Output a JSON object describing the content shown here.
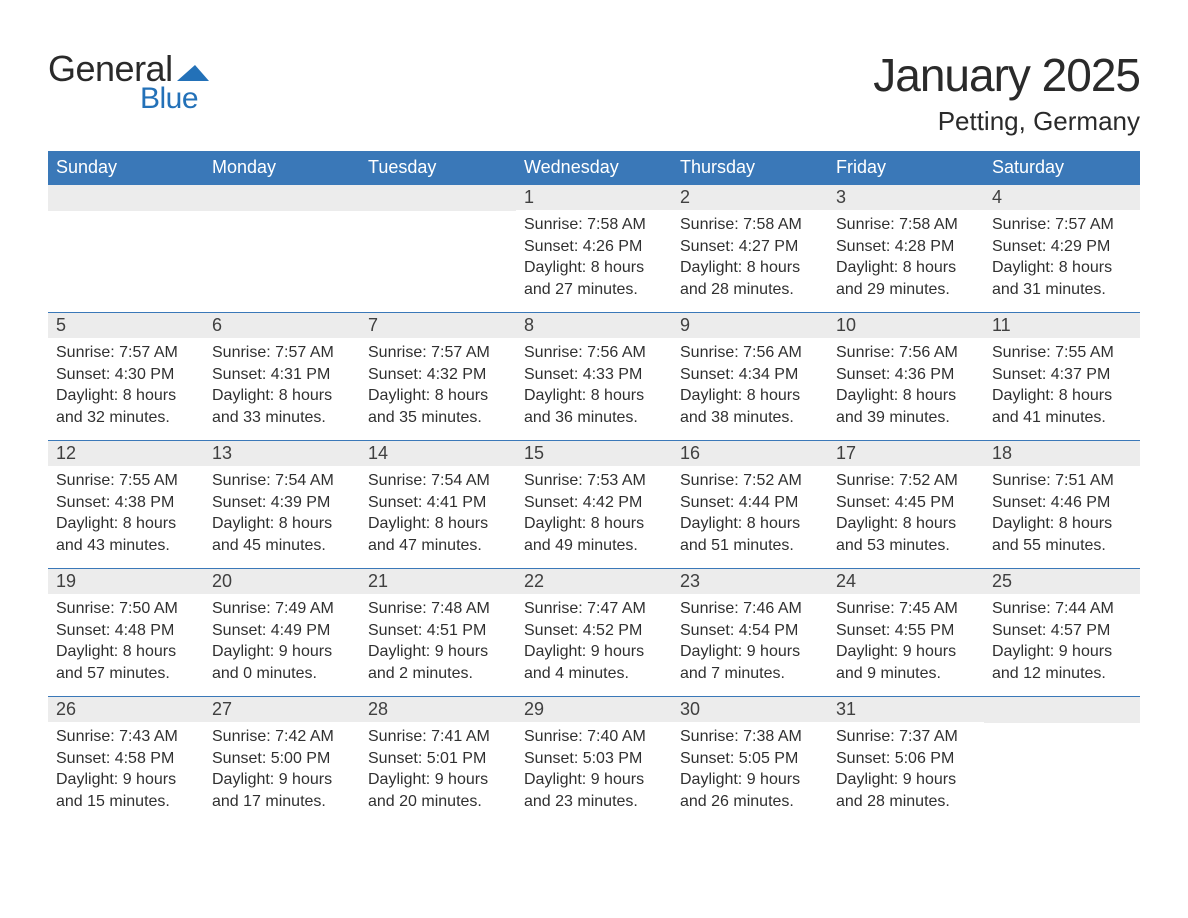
{
  "branding": {
    "word1": "General",
    "word2": "Blue",
    "word1_color": "#2a2a2a",
    "word2_color": "#2371b8",
    "flag_color": "#2371b8"
  },
  "header": {
    "month_title": "January 2025",
    "location": "Petting, Germany"
  },
  "styling": {
    "header_bg": "#3a78b8",
    "header_text": "#ffffff",
    "row_divider": "#3a78b8",
    "daynum_bg": "#ececec",
    "body_text": "#303030",
    "page_bg": "#ffffff",
    "th_fontsize": 18,
    "daynum_fontsize": 18,
    "body_fontsize": 16,
    "title_fontsize": 46,
    "location_fontsize": 26
  },
  "weekdays": [
    "Sunday",
    "Monday",
    "Tuesday",
    "Wednesday",
    "Thursday",
    "Friday",
    "Saturday"
  ],
  "weeks": [
    [
      {
        "empty": true
      },
      {
        "empty": true
      },
      {
        "empty": true
      },
      {
        "day": "1",
        "sunrise": "Sunrise: 7:58 AM",
        "sunset": "Sunset: 4:26 PM",
        "daylight1": "Daylight: 8 hours",
        "daylight2": "and 27 minutes."
      },
      {
        "day": "2",
        "sunrise": "Sunrise: 7:58 AM",
        "sunset": "Sunset: 4:27 PM",
        "daylight1": "Daylight: 8 hours",
        "daylight2": "and 28 minutes."
      },
      {
        "day": "3",
        "sunrise": "Sunrise: 7:58 AM",
        "sunset": "Sunset: 4:28 PM",
        "daylight1": "Daylight: 8 hours",
        "daylight2": "and 29 minutes."
      },
      {
        "day": "4",
        "sunrise": "Sunrise: 7:57 AM",
        "sunset": "Sunset: 4:29 PM",
        "daylight1": "Daylight: 8 hours",
        "daylight2": "and 31 minutes."
      }
    ],
    [
      {
        "day": "5",
        "sunrise": "Sunrise: 7:57 AM",
        "sunset": "Sunset: 4:30 PM",
        "daylight1": "Daylight: 8 hours",
        "daylight2": "and 32 minutes."
      },
      {
        "day": "6",
        "sunrise": "Sunrise: 7:57 AM",
        "sunset": "Sunset: 4:31 PM",
        "daylight1": "Daylight: 8 hours",
        "daylight2": "and 33 minutes."
      },
      {
        "day": "7",
        "sunrise": "Sunrise: 7:57 AM",
        "sunset": "Sunset: 4:32 PM",
        "daylight1": "Daylight: 8 hours",
        "daylight2": "and 35 minutes."
      },
      {
        "day": "8",
        "sunrise": "Sunrise: 7:56 AM",
        "sunset": "Sunset: 4:33 PM",
        "daylight1": "Daylight: 8 hours",
        "daylight2": "and 36 minutes."
      },
      {
        "day": "9",
        "sunrise": "Sunrise: 7:56 AM",
        "sunset": "Sunset: 4:34 PM",
        "daylight1": "Daylight: 8 hours",
        "daylight2": "and 38 minutes."
      },
      {
        "day": "10",
        "sunrise": "Sunrise: 7:56 AM",
        "sunset": "Sunset: 4:36 PM",
        "daylight1": "Daylight: 8 hours",
        "daylight2": "and 39 minutes."
      },
      {
        "day": "11",
        "sunrise": "Sunrise: 7:55 AM",
        "sunset": "Sunset: 4:37 PM",
        "daylight1": "Daylight: 8 hours",
        "daylight2": "and 41 minutes."
      }
    ],
    [
      {
        "day": "12",
        "sunrise": "Sunrise: 7:55 AM",
        "sunset": "Sunset: 4:38 PM",
        "daylight1": "Daylight: 8 hours",
        "daylight2": "and 43 minutes."
      },
      {
        "day": "13",
        "sunrise": "Sunrise: 7:54 AM",
        "sunset": "Sunset: 4:39 PM",
        "daylight1": "Daylight: 8 hours",
        "daylight2": "and 45 minutes."
      },
      {
        "day": "14",
        "sunrise": "Sunrise: 7:54 AM",
        "sunset": "Sunset: 4:41 PM",
        "daylight1": "Daylight: 8 hours",
        "daylight2": "and 47 minutes."
      },
      {
        "day": "15",
        "sunrise": "Sunrise: 7:53 AM",
        "sunset": "Sunset: 4:42 PM",
        "daylight1": "Daylight: 8 hours",
        "daylight2": "and 49 minutes."
      },
      {
        "day": "16",
        "sunrise": "Sunrise: 7:52 AM",
        "sunset": "Sunset: 4:44 PM",
        "daylight1": "Daylight: 8 hours",
        "daylight2": "and 51 minutes."
      },
      {
        "day": "17",
        "sunrise": "Sunrise: 7:52 AM",
        "sunset": "Sunset: 4:45 PM",
        "daylight1": "Daylight: 8 hours",
        "daylight2": "and 53 minutes."
      },
      {
        "day": "18",
        "sunrise": "Sunrise: 7:51 AM",
        "sunset": "Sunset: 4:46 PM",
        "daylight1": "Daylight: 8 hours",
        "daylight2": "and 55 minutes."
      }
    ],
    [
      {
        "day": "19",
        "sunrise": "Sunrise: 7:50 AM",
        "sunset": "Sunset: 4:48 PM",
        "daylight1": "Daylight: 8 hours",
        "daylight2": "and 57 minutes."
      },
      {
        "day": "20",
        "sunrise": "Sunrise: 7:49 AM",
        "sunset": "Sunset: 4:49 PM",
        "daylight1": "Daylight: 9 hours",
        "daylight2": "and 0 minutes."
      },
      {
        "day": "21",
        "sunrise": "Sunrise: 7:48 AM",
        "sunset": "Sunset: 4:51 PM",
        "daylight1": "Daylight: 9 hours",
        "daylight2": "and 2 minutes."
      },
      {
        "day": "22",
        "sunrise": "Sunrise: 7:47 AM",
        "sunset": "Sunset: 4:52 PM",
        "daylight1": "Daylight: 9 hours",
        "daylight2": "and 4 minutes."
      },
      {
        "day": "23",
        "sunrise": "Sunrise: 7:46 AM",
        "sunset": "Sunset: 4:54 PM",
        "daylight1": "Daylight: 9 hours",
        "daylight2": "and 7 minutes."
      },
      {
        "day": "24",
        "sunrise": "Sunrise: 7:45 AM",
        "sunset": "Sunset: 4:55 PM",
        "daylight1": "Daylight: 9 hours",
        "daylight2": "and 9 minutes."
      },
      {
        "day": "25",
        "sunrise": "Sunrise: 7:44 AM",
        "sunset": "Sunset: 4:57 PM",
        "daylight1": "Daylight: 9 hours",
        "daylight2": "and 12 minutes."
      }
    ],
    [
      {
        "day": "26",
        "sunrise": "Sunrise: 7:43 AM",
        "sunset": "Sunset: 4:58 PM",
        "daylight1": "Daylight: 9 hours",
        "daylight2": "and 15 minutes."
      },
      {
        "day": "27",
        "sunrise": "Sunrise: 7:42 AM",
        "sunset": "Sunset: 5:00 PM",
        "daylight1": "Daylight: 9 hours",
        "daylight2": "and 17 minutes."
      },
      {
        "day": "28",
        "sunrise": "Sunrise: 7:41 AM",
        "sunset": "Sunset: 5:01 PM",
        "daylight1": "Daylight: 9 hours",
        "daylight2": "and 20 minutes."
      },
      {
        "day": "29",
        "sunrise": "Sunrise: 7:40 AM",
        "sunset": "Sunset: 5:03 PM",
        "daylight1": "Daylight: 9 hours",
        "daylight2": "and 23 minutes."
      },
      {
        "day": "30",
        "sunrise": "Sunrise: 7:38 AM",
        "sunset": "Sunset: 5:05 PM",
        "daylight1": "Daylight: 9 hours",
        "daylight2": "and 26 minutes."
      },
      {
        "day": "31",
        "sunrise": "Sunrise: 7:37 AM",
        "sunset": "Sunset: 5:06 PM",
        "daylight1": "Daylight: 9 hours",
        "daylight2": "and 28 minutes."
      },
      {
        "empty": true
      }
    ]
  ]
}
